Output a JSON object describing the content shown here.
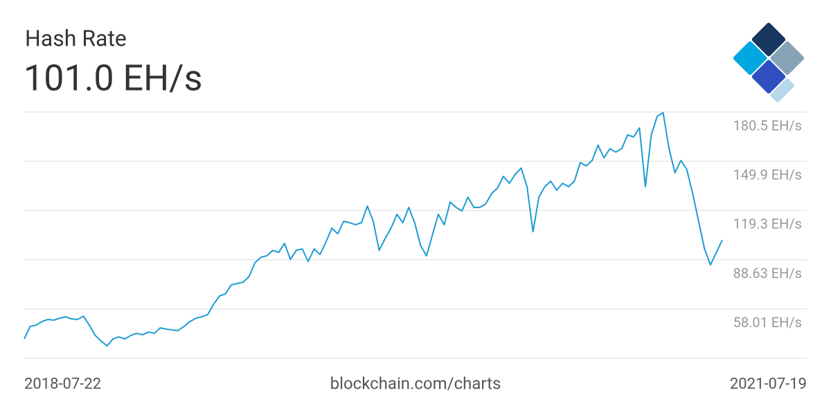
{
  "chart_data": {
    "type": "line",
    "title": "Hash Rate",
    "subtitle": "101.0 EH/s",
    "footer": "blockchain.com/charts",
    "categories": [
      "2018-07-22",
      null,
      null,
      null,
      null,
      null,
      null,
      null,
      null,
      null,
      null,
      null,
      null,
      null,
      null,
      null,
      null,
      null,
      null,
      null,
      null,
      null,
      null,
      null,
      null,
      null,
      null,
      null,
      null,
      null,
      null,
      null,
      null,
      null,
      null,
      null,
      null,
      null,
      null,
      null,
      null,
      null,
      null,
      null,
      null,
      null,
      null,
      null,
      null,
      null,
      null,
      null,
      null,
      null,
      null,
      null,
      null,
      null,
      null,
      null,
      null,
      null,
      null,
      null,
      null,
      null,
      null,
      null,
      null,
      null,
      null,
      null,
      null,
      null,
      null,
      null,
      null,
      null,
      null,
      null,
      null,
      null,
      null,
      null,
      null,
      null,
      null,
      null,
      null,
      null,
      null,
      null,
      null,
      null,
      null,
      null,
      null,
      null,
      null,
      null,
      null,
      null,
      null,
      null,
      null,
      null,
      null,
      null,
      null,
      null,
      null,
      null,
      null,
      null,
      null,
      null,
      null,
      null,
      "2021-07-19"
    ],
    "values": [
      39.4,
      47.2,
      48.0,
      50.2,
      51.5,
      51.1,
      52.3,
      53.2,
      51.9,
      51.5,
      53.6,
      48.0,
      41.6,
      38.1,
      35.1,
      39.4,
      40.7,
      39.4,
      41.6,
      42.9,
      42.0,
      43.7,
      42.9,
      46.3,
      45.5,
      45.0,
      44.6,
      47.2,
      50.2,
      52.3,
      53.2,
      54.5,
      60.9,
      66.1,
      67.4,
      73.0,
      73.9,
      74.7,
      78.2,
      86.8,
      90.2,
      91.1,
      94.5,
      93.2,
      98.8,
      88.9,
      94.5,
      95.4,
      87.6,
      95.4,
      91.9,
      99.7,
      108.3,
      104.8,
      112.6,
      111.7,
      110.4,
      111.7,
      122.0,
      112.6,
      94.5,
      101.8,
      108.3,
      116.9,
      111.7,
      121.2,
      111.7,
      97.5,
      91.1,
      104.0,
      116.9,
      110.4,
      124.6,
      121.2,
      119.0,
      127.6,
      121.2,
      121.2,
      123.3,
      129.8,
      133.2,
      140.5,
      136.2,
      141.8,
      145.7,
      134.1,
      106.1,
      127.6,
      134.1,
      137.5,
      131.9,
      136.2,
      134.1,
      137.5,
      149.1,
      147.0,
      150.4,
      159.9,
      152.1,
      157.7,
      155.6,
      157.7,
      166.3,
      165.0,
      170.6,
      134.1,
      166.3,
      177.9,
      180.1,
      157.7,
      142.7,
      150.4,
      144.8,
      129.8,
      112.6,
      95.4,
      85.5,
      93.2,
      100.9
    ],
    "color": "#1d9bd4",
    "ylim": [
      27.39,
      180.5
    ],
    "yticks": [
      {
        "value": 58.01,
        "label": "58.01 EH/s"
      },
      {
        "value": 88.63,
        "label": "88.63 EH/s"
      },
      {
        "value": 119.3,
        "label": "119.3 EH/s"
      },
      {
        "value": 149.9,
        "label": "149.9 EH/s"
      },
      {
        "value": 180.5,
        "label": "180.5 EH/s"
      }
    ],
    "grid": true
  }
}
